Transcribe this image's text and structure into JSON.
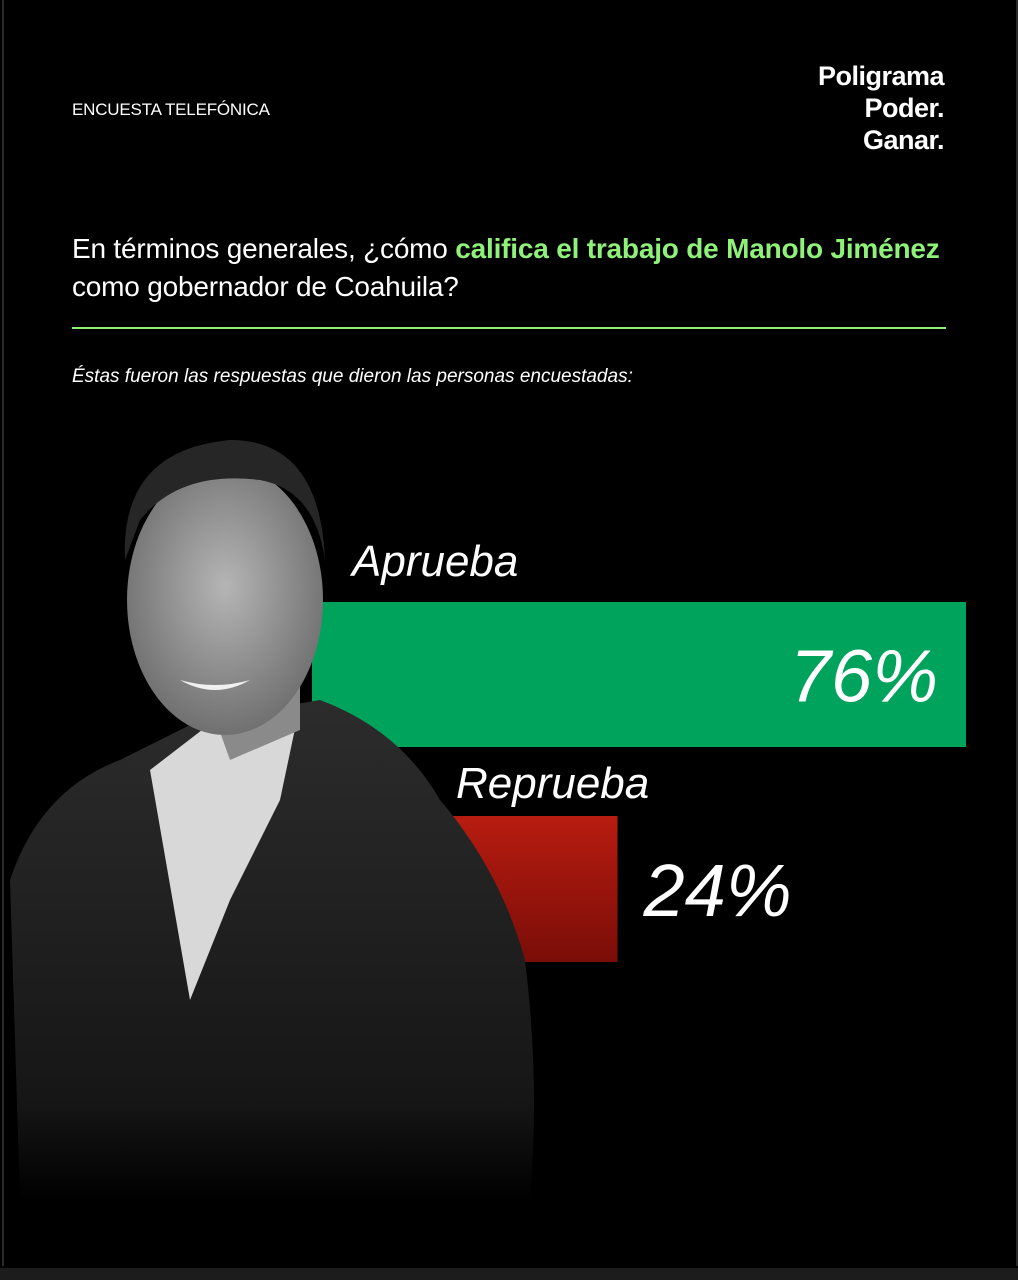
{
  "header": {
    "kicker": "ENCUESTA TELEFÓNICA",
    "brand": [
      "Poligrama",
      "Poder.",
      "Ganar."
    ]
  },
  "question": {
    "part1": "En términos generales, ¿cómo ",
    "highlight": "califica el trabajo de Manolo Jiménez",
    "part2": " como gobernador de Coahuila?"
  },
  "subtitle": "Éstas fueron las respuestas que dieron las personas encuestadas:",
  "colors": {
    "accent": "#8ff07a",
    "approve": "#00a35c",
    "disapprove": "#a8180e"
  },
  "chart_data": {
    "type": "bar",
    "orientation": "horizontal",
    "categories": [
      "Aprueba",
      "Reprueba"
    ],
    "values": [
      76,
      24
    ],
    "data_labels": [
      "76%",
      "24%"
    ],
    "unit": "%"
  }
}
